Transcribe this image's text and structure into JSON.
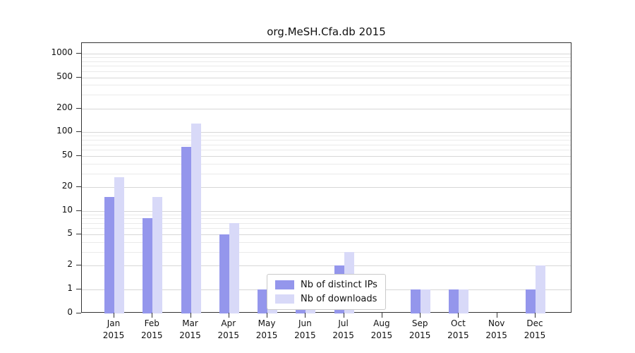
{
  "chart_data": {
    "type": "bar",
    "title": "org.MeSH.Cfa.db 2015",
    "year": "2015",
    "categories": [
      "Jan",
      "Feb",
      "Mar",
      "Apr",
      "May",
      "Jun",
      "Jul",
      "Aug",
      "Sep",
      "Oct",
      "Nov",
      "Dec"
    ],
    "series": [
      {
        "id": "distinct-ips",
        "name": "Nb of distinct IPs",
        "color": "#9496ec",
        "values": [
          15,
          8,
          65,
          5,
          1,
          1,
          2,
          0,
          1,
          1,
          0,
          1
        ]
      },
      {
        "id": "downloads",
        "name": "Nb of downloads",
        "color": "#d8d9f8",
        "values": [
          27,
          15,
          130,
          7,
          1,
          1,
          3,
          0,
          1,
          1,
          0,
          2
        ]
      }
    ],
    "y_ticks": [
      0,
      1,
      2,
      5,
      10,
      20,
      50,
      100,
      200,
      500,
      1000
    ],
    "y_minor_gridlines": [
      3,
      4,
      6,
      7,
      8,
      9,
      30,
      40,
      60,
      70,
      80,
      90,
      300,
      400,
      600,
      700,
      800,
      900
    ],
    "y_scale": "log",
    "ylim": [
      0,
      1000
    ],
    "grid": true,
    "legend_position": "bottom-center"
  }
}
